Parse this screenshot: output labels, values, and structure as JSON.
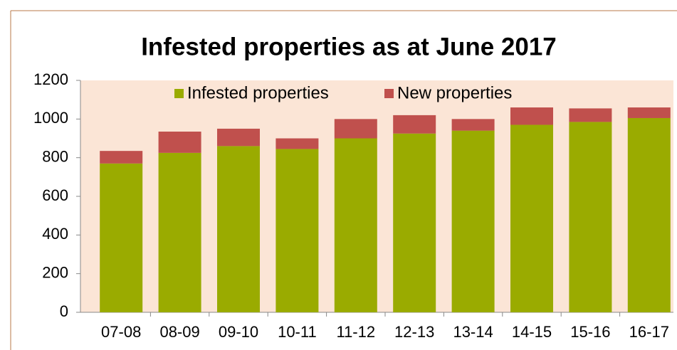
{
  "chart_data": {
    "type": "stacked_bar",
    "title": "Infested properties as at June 2017",
    "categories": [
      "07-08",
      "08-09",
      "09-10",
      "10-11",
      "11-12",
      "12-13",
      "13-14",
      "14-15",
      "15-16",
      "16-17"
    ],
    "series": [
      {
        "name": "Infested properties",
        "color": "#9aab00",
        "values": [
          770,
          825,
          860,
          845,
          900,
          925,
          940,
          970,
          985,
          1005
        ]
      },
      {
        "name": "New properties",
        "color": "#c0504d",
        "values": [
          65,
          110,
          90,
          55,
          100,
          95,
          60,
          90,
          70,
          55
        ]
      }
    ],
    "ylim": [
      0,
      1200
    ],
    "yticks": [
      0,
      200,
      400,
      600,
      800,
      1000,
      1200
    ],
    "grid": false,
    "legend": "top"
  }
}
